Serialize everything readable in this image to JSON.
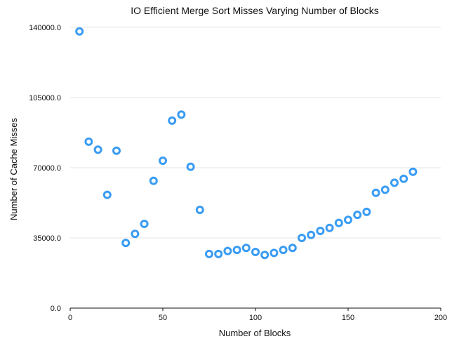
{
  "chart_data": {
    "type": "scatter",
    "title": "IO Efficient Merge Sort Misses Varying Number of Blocks",
    "xlabel": "Number of Blocks",
    "ylabel": "Number of Cache Misses",
    "xlim": [
      0,
      200
    ],
    "ylim": [
      0,
      140000
    ],
    "xticks": [
      0,
      50,
      100,
      150,
      200
    ],
    "xtick_labels": [
      "0",
      "50",
      "100",
      "150",
      "200"
    ],
    "yticks": [
      0,
      35000,
      70000,
      105000,
      140000
    ],
    "ytick_labels": [
      "0.0",
      "35000.0",
      "70000.0",
      "105000.0",
      "140000.0"
    ],
    "grid": true,
    "marker_color": "#3a9cf3",
    "series": [
      {
        "x": [
          5,
          10,
          15,
          20,
          25,
          30,
          35,
          40,
          45,
          50,
          55,
          60,
          65,
          70,
          75,
          80,
          85,
          90,
          95,
          100,
          105,
          110,
          115,
          120,
          125,
          130,
          135,
          140,
          145,
          150,
          155,
          160,
          165,
          170,
          175,
          180,
          185
        ],
        "y": [
          138000,
          83000,
          79000,
          56500,
          78500,
          32500,
          37000,
          42000,
          63500,
          73500,
          93500,
          96500,
          70500,
          49000,
          27000,
          27000,
          28500,
          29000,
          30000,
          28000,
          26500,
          27500,
          29000,
          30000,
          35000,
          36500,
          38500,
          40000,
          42500,
          44000,
          46500,
          48000,
          57500,
          59000,
          62500,
          64500,
          68000
        ]
      }
    ]
  }
}
